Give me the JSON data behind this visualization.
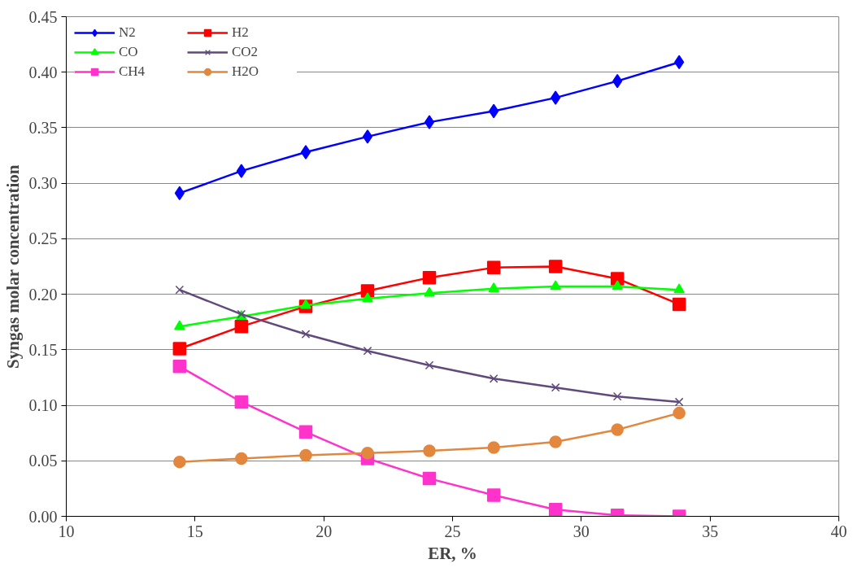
{
  "chart_data": {
    "type": "line",
    "xlabel": "ER, %",
    "ylabel": "Syngas molar concentration",
    "x": [
      14.4,
      16.8,
      19.3,
      21.7,
      24.1,
      26.6,
      29.0,
      31.4,
      33.8
    ],
    "xlim": [
      10,
      40
    ],
    "xticks": [
      10,
      15,
      20,
      25,
      30,
      35,
      40
    ],
    "ylim": [
      0,
      0.45
    ],
    "yticks": [
      {
        "value": 0,
        "label": "0.00"
      },
      {
        "value": 0.05,
        "label": "0.05"
      },
      {
        "value": 0.1,
        "label": "0.10"
      },
      {
        "value": 0.15,
        "label": "0.15"
      },
      {
        "value": 0.2,
        "label": "0.20"
      },
      {
        "value": 0.25,
        "label": "0.25"
      },
      {
        "value": 0.3,
        "label": "0.30"
      },
      {
        "value": 0.35,
        "label": "0.35"
      },
      {
        "value": 0.4,
        "label": "0.40"
      },
      {
        "value": 0.45,
        "label": "0.45"
      }
    ],
    "grid": "y",
    "legend": "top left",
    "series": [
      {
        "name": "N2",
        "color": "#0000ff",
        "marker": "diamond",
        "values": [
          0.291,
          0.311,
          0.328,
          0.342,
          0.355,
          0.365,
          0.377,
          0.392,
          0.409
        ]
      },
      {
        "name": "H2",
        "color": "#ff0000",
        "marker": "square",
        "values": [
          0.151,
          0.171,
          0.189,
          0.203,
          0.215,
          0.224,
          0.225,
          0.214,
          0.191
        ]
      },
      {
        "name": "CO",
        "color": "#00ff00",
        "marker": "triangle",
        "values": [
          0.171,
          0.18,
          0.19,
          0.196,
          0.201,
          0.205,
          0.207,
          0.207,
          0.204
        ]
      },
      {
        "name": "CO2",
        "color": "#604a7b",
        "marker": "cross",
        "values": [
          0.204,
          0.182,
          0.164,
          0.149,
          0.136,
          0.124,
          0.116,
          0.108,
          0.103
        ]
      },
      {
        "name": "CH4",
        "color": "#ff33cc",
        "marker": "square",
        "values": [
          0.135,
          0.103,
          0.076,
          0.052,
          0.034,
          0.019,
          0.006,
          0.001,
          0.0
        ]
      },
      {
        "name": "H2O",
        "color": "#e3873e",
        "marker": "circle",
        "values": [
          0.049,
          0.052,
          0.055,
          0.057,
          0.059,
          0.062,
          0.067,
          0.078,
          0.093
        ]
      }
    ]
  }
}
